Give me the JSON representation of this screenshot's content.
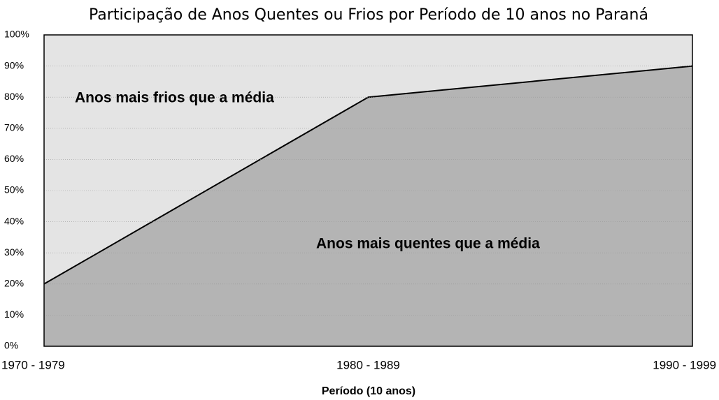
{
  "chart_data": {
    "type": "stacked_area",
    "title": "Participação de Anos Quentes ou Frios por Período de 10 anos no Paraná",
    "x_label": "Período (10 anos)",
    "categories": [
      "1970 - 1979",
      "1980 - 1989",
      "1990 - 1999"
    ],
    "series": [
      {
        "name": "Anos mais quentes que a média",
        "color": "#b4b4b4",
        "values": [
          20,
          80,
          90
        ]
      },
      {
        "name": "Anos mais frios que a média",
        "color": "#e4e4e4",
        "values": [
          80,
          20,
          10
        ]
      }
    ],
    "ylim": [
      0,
      100
    ],
    "yticks": [
      {
        "value": 0,
        "label": "0%"
      },
      {
        "value": 10,
        "label": "10%"
      },
      {
        "value": 20,
        "label": "20%"
      },
      {
        "value": 30,
        "label": "30%"
      },
      {
        "value": 40,
        "label": "40%"
      },
      {
        "value": 50,
        "label": "50%"
      },
      {
        "value": 60,
        "label": "60%"
      },
      {
        "value": 70,
        "label": "70%"
      },
      {
        "value": 80,
        "label": "80%"
      },
      {
        "value": 90,
        "label": "90%"
      },
      {
        "value": 100,
        "label": "100%"
      }
    ],
    "grid": true
  }
}
